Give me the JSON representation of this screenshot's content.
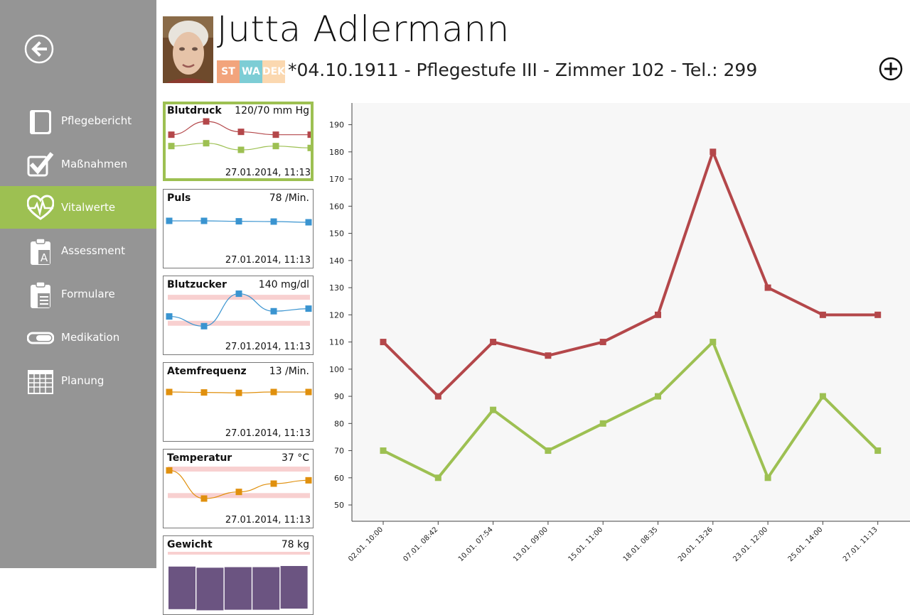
{
  "patient": {
    "name": "Jutta Adlermann",
    "info": "*04.10.1911 - Pflegestufe III - Zimmer 102 - Tel.: 299",
    "tags": [
      {
        "label": "ST",
        "color": "#f2a47c"
      },
      {
        "label": "WA",
        "color": "#7dcdd5"
      },
      {
        "label": "DEK",
        "color": "#fbd8b0"
      }
    ]
  },
  "nav": {
    "items": [
      {
        "label": "Pflegebericht",
        "icon": "book-icon",
        "active": false
      },
      {
        "label": "Maßnahmen",
        "icon": "checkmark-icon",
        "active": false
      },
      {
        "label": "Vitalwerte",
        "icon": "heart-pulse-icon",
        "active": true
      },
      {
        "label": "Assessment",
        "icon": "clipboard-a-icon",
        "active": false
      },
      {
        "label": "Formulare",
        "icon": "clipboard-form-icon",
        "active": false
      },
      {
        "label": "Medikation",
        "icon": "pill-icon",
        "active": false
      },
      {
        "label": "Planung",
        "icon": "calendar-grid-icon",
        "active": false
      }
    ]
  },
  "colors": {
    "sidebar": "#959595",
    "accent": "#9dc052",
    "systolic": "#b4474a",
    "diastolic": "#9dc052",
    "blue": "#3a94d0",
    "orange": "#e0900e",
    "range": "#f8d0d0",
    "bars": "#6b5481"
  },
  "cards": [
    {
      "title": "Blutdruck",
      "value": "120/70 mm Hg",
      "date": "27.01.2014, 11:13",
      "selected": true
    },
    {
      "title": "Puls",
      "value": "78 /Min.",
      "date": "27.01.2014, 11:13"
    },
    {
      "title": "Blutzucker",
      "value": "140 mg/dl",
      "date": "27.01.2014, 11:13"
    },
    {
      "title": "Atemfrequenz",
      "value": "13 /Min.",
      "date": "27.01.2014, 11:13"
    },
    {
      "title": "Temperatur",
      "value": "37 °C",
      "date": "27.01.2014, 11:13"
    },
    {
      "title": "Gewicht",
      "value": "78 kg",
      "date": ""
    }
  ],
  "sparklines": {
    "blutdruck": {
      "systolic": [
        110,
        124,
        113,
        110,
        110
      ],
      "diastolic": [
        98,
        101,
        94,
        98,
        96
      ]
    },
    "puls": [
      78,
      78,
      77.7,
      77.5,
      77
    ],
    "blutzucker": {
      "values": [
        120,
        105,
        155,
        128,
        132
      ],
      "range": [
        110,
        150
      ]
    },
    "atemfrequenz": [
      13,
      12.8,
      12.6,
      13,
      13
    ],
    "temperatur": {
      "values": [
        37.8,
        36.1,
        36.5,
        37.0,
        37.2
      ],
      "range": [
        36.3,
        37.9
      ]
    },
    "gewicht": [
      78,
      77.8,
      77.9,
      77.9,
      78.1
    ]
  },
  "chart_data": {
    "type": "line",
    "x": [
      "02.01. 10:00",
      "07.01. 08:42",
      "10.01. 07:54",
      "13.01. 09:00",
      "15.01. 11:00",
      "18.01. 08:35",
      "20.01. 13:26",
      "23.01. 12:00",
      "25.01. 14:00",
      "27.01. 11:13"
    ],
    "series": [
      {
        "values": [
          110,
          90,
          110,
          105,
          110,
          120,
          180,
          130,
          120,
          120
        ],
        "color": "#b4474a"
      },
      {
        "values": [
          70,
          60,
          85,
          70,
          80,
          90,
          110,
          60,
          90,
          70
        ],
        "color": "#9dc052"
      }
    ],
    "yticks": [
      50,
      60,
      70,
      80,
      90,
      100,
      110,
      120,
      130,
      140,
      150,
      160,
      170,
      180,
      190
    ],
    "ylim": [
      44,
      198
    ],
    "grid": false,
    "title": "",
    "xlabel": "",
    "ylabel": ""
  }
}
